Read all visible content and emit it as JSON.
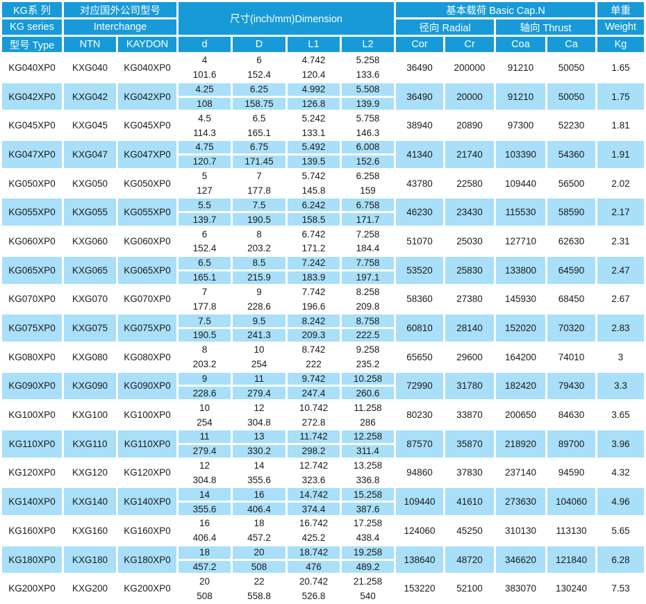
{
  "colors": {
    "header_bg": "#189AD8",
    "alt_row_bg": "#A9DFF8",
    "header_text": "#FFFFFF",
    "body_text": "#1A1A1A",
    "page_bg": "#FFFFFF"
  },
  "table": {
    "header": {
      "series_cn": "KG系 列",
      "series_en": "KG series",
      "type_label": "型号 Type",
      "interchange_cn": "对应国外公司型号",
      "interchange_en": "Interchange",
      "ntn": "NTN",
      "kaydon": "KAYDON",
      "dimension_title": "尺寸(inch/mm)Dimension",
      "dim_cols": [
        "d",
        "D",
        "L1",
        "L2"
      ],
      "capacity_title": "基本载荷 Basic Cap.N",
      "radial_label": "径向 Radial",
      "thrust_label": "轴向 Thrust",
      "cap_cols": [
        "Cor",
        "Cr",
        "Coa",
        "Ca"
      ],
      "weight_cn": "单重",
      "weight_en": "Weight",
      "weight_unit": "Kg"
    },
    "rows": [
      {
        "type": "KG040XP0",
        "ntn": "KXG040",
        "kaydon": "KG040XP0",
        "d": [
          "4",
          "101.6"
        ],
        "D": [
          "6",
          "152.4"
        ],
        "L1": [
          "4.742",
          "120.4"
        ],
        "L2": [
          "5.258",
          "133.6"
        ],
        "Cor": "36490",
        "Cr": "200000",
        "Coa": "91210",
        "Ca": "50050",
        "Kg": "1.65"
      },
      {
        "type": "KG042XP0",
        "ntn": "KXG042",
        "kaydon": "KG042XP0",
        "d": [
          "4.25",
          "108"
        ],
        "D": [
          "6.25",
          "158.75"
        ],
        "L1": [
          "4.992",
          "126.8"
        ],
        "L2": [
          "5.508",
          "139.9"
        ],
        "Cor": "36490",
        "Cr": "20000",
        "Coa": "91210",
        "Ca": "50050",
        "Kg": "1.75"
      },
      {
        "type": "KG045XP0",
        "ntn": "KXG045",
        "kaydon": "KG045XP0",
        "d": [
          "4.5",
          "114.3"
        ],
        "D": [
          "6.5",
          "165.1"
        ],
        "L1": [
          "5.242",
          "133.1"
        ],
        "L2": [
          "5.758",
          "146.3"
        ],
        "Cor": "38940",
        "Cr": "20890",
        "Coa": "97300",
        "Ca": "52230",
        "Kg": "1.81"
      },
      {
        "type": "KG047XP0",
        "ntn": "KXG047",
        "kaydon": "KG047XP0",
        "d": [
          "4.75",
          "120.7"
        ],
        "D": [
          "6.75",
          "171.45"
        ],
        "L1": [
          "5.492",
          "139.5"
        ],
        "L2": [
          "6.008",
          "152.6"
        ],
        "Cor": "41340",
        "Cr": "21740",
        "Coa": "103390",
        "Ca": "54360",
        "Kg": "1.91"
      },
      {
        "type": "KG050XP0",
        "ntn": "KXG050",
        "kaydon": "KG050XP0",
        "d": [
          "5",
          "127"
        ],
        "D": [
          "7",
          "177.8"
        ],
        "L1": [
          "5.742",
          "145.8"
        ],
        "L2": [
          "6.258",
          "159"
        ],
        "Cor": "43780",
        "Cr": "22580",
        "Coa": "109440",
        "Ca": "56500",
        "Kg": "2.02"
      },
      {
        "type": "KG055XP0",
        "ntn": "KXG055",
        "kaydon": "KG055XP0",
        "d": [
          "5.5",
          "139.7"
        ],
        "D": [
          "7.5",
          "190.5"
        ],
        "L1": [
          "6.242",
          "158.5"
        ],
        "L2": [
          "6.758",
          "171.7"
        ],
        "Cor": "46230",
        "Cr": "23430",
        "Coa": "115530",
        "Ca": "58590",
        "Kg": "2.17"
      },
      {
        "type": "KG060XP0",
        "ntn": "KXG060",
        "kaydon": "KG060XP0",
        "d": [
          "6",
          "152.4"
        ],
        "D": [
          "8",
          "203.2"
        ],
        "L1": [
          "6.742",
          "171.2"
        ],
        "L2": [
          "7.258",
          "184.4"
        ],
        "Cor": "51070",
        "Cr": "25030",
        "Coa": "127710",
        "Ca": "62630",
        "Kg": "2.31"
      },
      {
        "type": "KG065XP0",
        "ntn": "KXG065",
        "kaydon": "KG065XP0",
        "d": [
          "6.5",
          "165.1"
        ],
        "D": [
          "8.5",
          "215.9"
        ],
        "L1": [
          "7.242",
          "183.9"
        ],
        "L2": [
          "7.758",
          "197.1"
        ],
        "Cor": "53520",
        "Cr": "25830",
        "Coa": "133800",
        "Ca": "64590",
        "Kg": "2.47"
      },
      {
        "type": "KG070XP0",
        "ntn": "KXG070",
        "kaydon": "KG070XP0",
        "d": [
          "7",
          "177.8"
        ],
        "D": [
          "9",
          "228.6"
        ],
        "L1": [
          "7.742",
          "196.6"
        ],
        "L2": [
          "8.258",
          "209.8"
        ],
        "Cor": "58360",
        "Cr": "27380",
        "Coa": "145930",
        "Ca": "68450",
        "Kg": "2.67"
      },
      {
        "type": "KG075XP0",
        "ntn": "KXG075",
        "kaydon": "KG075XP0",
        "d": [
          "7.5",
          "190.5"
        ],
        "D": [
          "9.5",
          "241.3"
        ],
        "L1": [
          "8.242",
          "209.3"
        ],
        "L2": [
          "8.758",
          "222.5"
        ],
        "Cor": "60810",
        "Cr": "28140",
        "Coa": "152020",
        "Ca": "70320",
        "Kg": "2.83"
      },
      {
        "type": "KG080XP0",
        "ntn": "KXG080",
        "kaydon": "KG080XP0",
        "d": [
          "8",
          "203.2"
        ],
        "D": [
          "10",
          "254"
        ],
        "L1": [
          "8.742",
          "222"
        ],
        "L2": [
          "9.258",
          "235.2"
        ],
        "Cor": "65650",
        "Cr": "29600",
        "Coa": "164200",
        "Ca": "74010",
        "Kg": "3"
      },
      {
        "type": "KG090XP0",
        "ntn": "KXG090",
        "kaydon": "KG090XP0",
        "d": [
          "9",
          "228.6"
        ],
        "D": [
          "11",
          "279.4"
        ],
        "L1": [
          "9.742",
          "247.4"
        ],
        "L2": [
          "10.258",
          "260.6"
        ],
        "Cor": "72990",
        "Cr": "31780",
        "Coa": "182420",
        "Ca": "79430",
        "Kg": "3.3"
      },
      {
        "type": "KG100XP0",
        "ntn": "KXG100",
        "kaydon": "KG100XP0",
        "d": [
          "10",
          "254"
        ],
        "D": [
          "12",
          "304.8"
        ],
        "L1": [
          "10.742",
          "272.8"
        ],
        "L2": [
          "11.258",
          "286"
        ],
        "Cor": "80230",
        "Cr": "33870",
        "Coa": "200650",
        "Ca": "84630",
        "Kg": "3.65"
      },
      {
        "type": "KG110XP0",
        "ntn": "KXG110",
        "kaydon": "KG110XP0",
        "d": [
          "11",
          "279.4"
        ],
        "D": [
          "13",
          "330.2"
        ],
        "L1": [
          "11.742",
          "298.2"
        ],
        "L2": [
          "12.258",
          "311.4"
        ],
        "Cor": "87570",
        "Cr": "35870",
        "Coa": "218920",
        "Ca": "89700",
        "Kg": "3.96"
      },
      {
        "type": "KG120XP0",
        "ntn": "KXG120",
        "kaydon": "KG120XP0",
        "d": [
          "12",
          "304.8"
        ],
        "D": [
          "14",
          "355.6"
        ],
        "L1": [
          "12.742",
          "323.6"
        ],
        "L2": [
          "13.258",
          "336.8"
        ],
        "Cor": "94860",
        "Cr": "37830",
        "Coa": "237140",
        "Ca": "94590",
        "Kg": "4.32"
      },
      {
        "type": "KG140XP0",
        "ntn": "KXG140",
        "kaydon": "KG140XP0",
        "d": [
          "14",
          "355.6"
        ],
        "D": [
          "16",
          "406.4"
        ],
        "L1": [
          "14.742",
          "374.4"
        ],
        "L2": [
          "15.258",
          "387.6"
        ],
        "Cor": "109440",
        "Cr": "41610",
        "Coa": "273630",
        "Ca": "104060",
        "Kg": "4.96"
      },
      {
        "type": "KG160XP0",
        "ntn": "KXG160",
        "kaydon": "KG160XP0",
        "d": [
          "16",
          "406.4"
        ],
        "D": [
          "18",
          "457.2"
        ],
        "L1": [
          "16.742",
          "425.2"
        ],
        "L2": [
          "17.258",
          "438.4"
        ],
        "Cor": "124060",
        "Cr": "45250",
        "Coa": "310130",
        "Ca": "113130",
        "Kg": "5.65"
      },
      {
        "type": "KG180XP0",
        "ntn": "KXG180",
        "kaydon": "KG180XP0",
        "d": [
          "18",
          "457.2"
        ],
        "D": [
          "20",
          "508"
        ],
        "L1": [
          "18.742",
          "476"
        ],
        "L2": [
          "19.258",
          "489.2"
        ],
        "Cor": "138640",
        "Cr": "48720",
        "Coa": "346620",
        "Ca": "121840",
        "Kg": "6.28"
      },
      {
        "type": "KG200XP0",
        "ntn": "KXG200",
        "kaydon": "KG200XP0",
        "d": [
          "20",
          "508"
        ],
        "D": [
          "22",
          "558.8"
        ],
        "L1": [
          "20.742",
          "526.8"
        ],
        "L2": [
          "21.258",
          "540"
        ],
        "Cor": "153220",
        "Cr": "52100",
        "Coa": "383070",
        "Ca": "130240",
        "Kg": "7.53"
      }
    ]
  }
}
